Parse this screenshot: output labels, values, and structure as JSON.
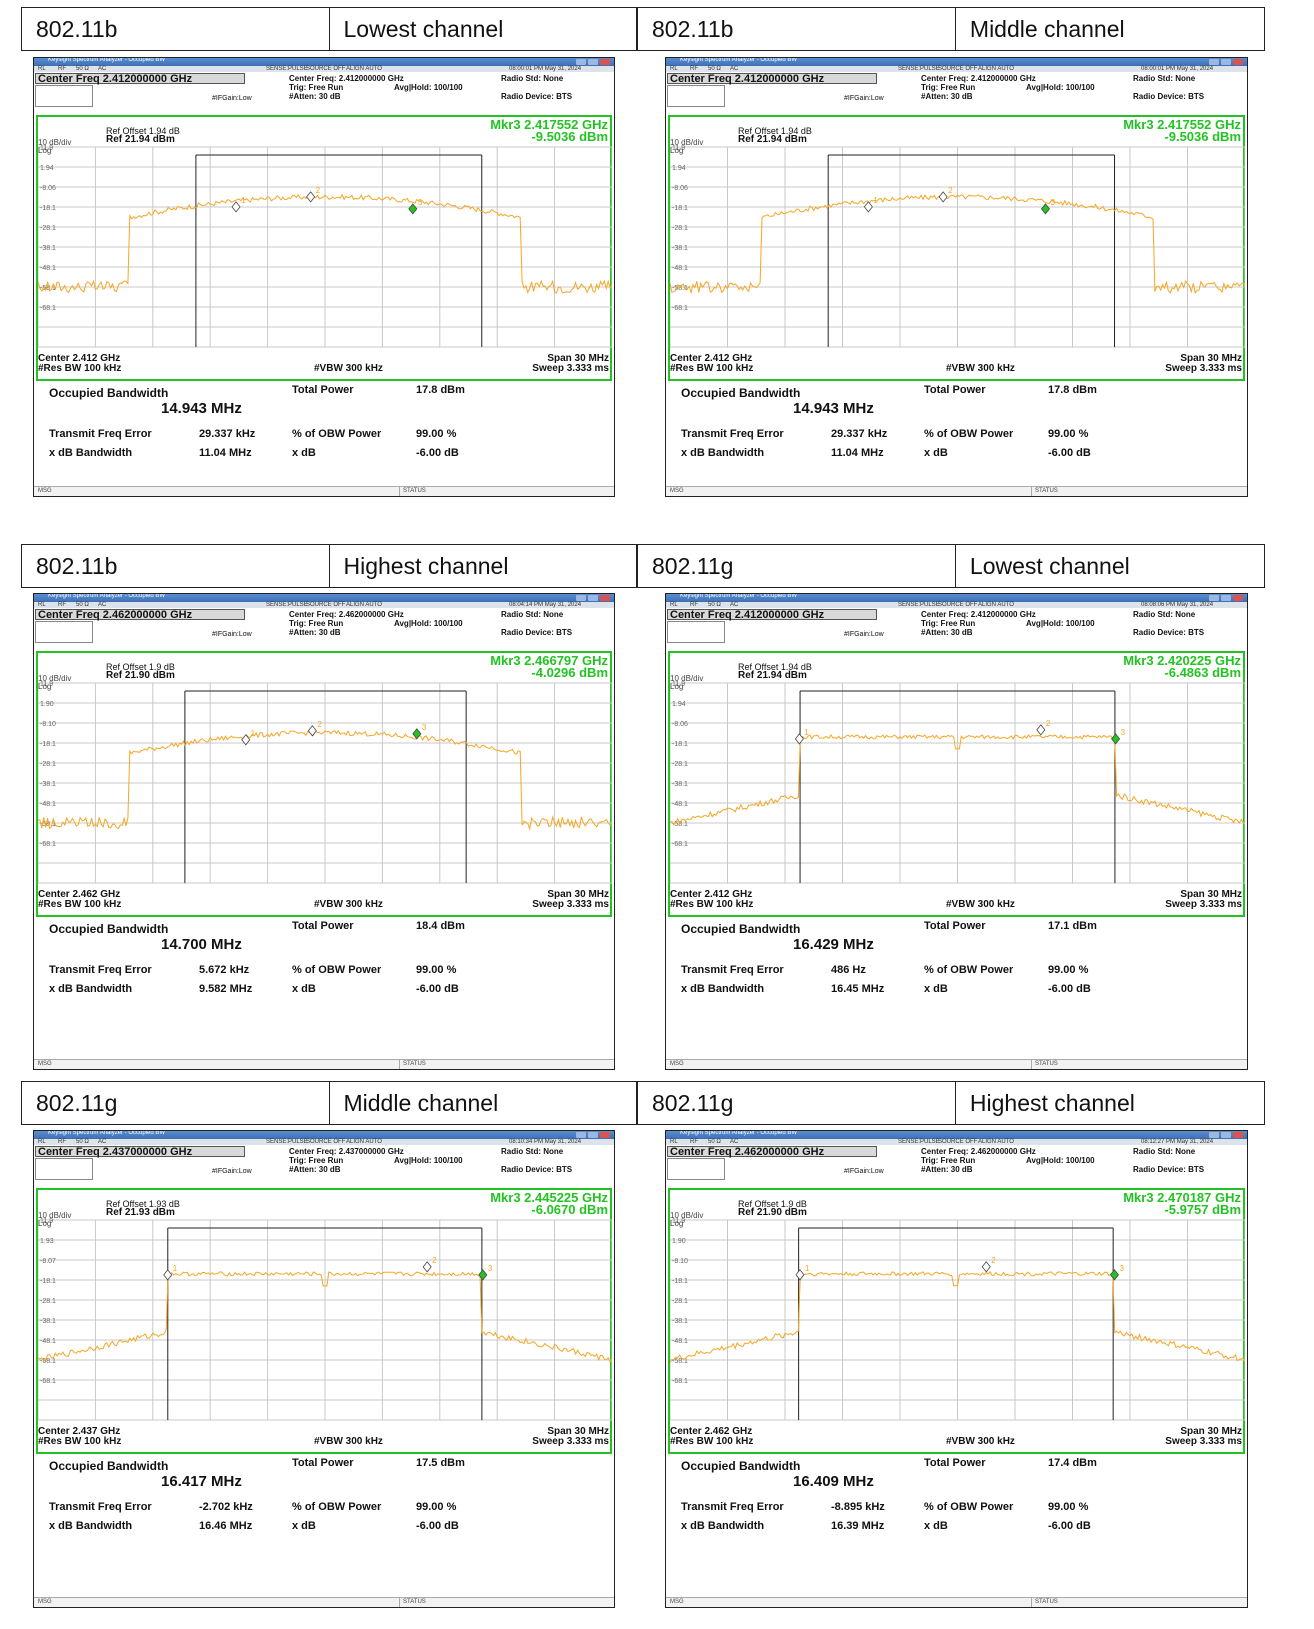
{
  "colors": {
    "trace": "#f5a623",
    "frame": "#22c322",
    "marker_active": "#22c322",
    "marker_inactive": "#ffffff",
    "window_title": "#3e6fb6"
  },
  "common": {
    "app_title": "Keysight Spectrum Analyzer - Occupied BW",
    "rl": "RL",
    "rf": "RF",
    "impedance": "50 Ω",
    "ac": "AC",
    "sense": "SENSE:PULSE",
    "source": "SOURCE OFF",
    "align": "ALIGN AUTO",
    "trig": "Trig: Free Run",
    "avg_hold": "Avg|Hold: 100/100",
    "radio_std": "Radio Std: None",
    "ifgain": "#IFGain:Low",
    "atten": "#Atten: 30 dB",
    "radio_device": "Radio Device: BTS",
    "scale": "10 dB/div",
    "log": "Log",
    "res_bw": "#Res BW  100 kHz",
    "vbw": "#VBW  300 kHz",
    "span": "Span 30 MHz",
    "sweep": "Sweep  3.333 ms",
    "obw_label": "Occupied Bandwidth",
    "total_power_label": "Total Power",
    "tfe_label": "Transmit Freq Error",
    "pct_label": "% of OBW Power",
    "pct_value": "99.00 %",
    "xdb_bw_label": "x dB Bandwidth",
    "xdb_label": "x dB",
    "xdb_value": "-6.00 dB",
    "msg": "MSG",
    "status": "STATUS"
  },
  "panels": [
    {
      "standard": "802.11b",
      "channel": "Lowest channel",
      "timestamp": "08:00:01 PM May 31, 2024",
      "cf_box": "Center Freq 2.412000000 GHz",
      "cf_small": "Center Freq: 2.412000000 GHz",
      "ref_offset": "Ref Offset 1.94 dB",
      "ref": "Ref 21.94 dBm",
      "marker_freq": "Mkr3  2.417552 GHz",
      "marker_level": "-9.5036 dBm",
      "yticks": [
        "11.9",
        "1.94",
        "-8.06",
        "-18.1",
        "-28.1",
        "-38.1",
        "-48.1",
        "-58.1",
        "-68.1"
      ],
      "center": "Center  2.412 GHz",
      "obw": "14.943 MHz",
      "total_power": "17.8 dBm",
      "tfe": "29.337 kHz",
      "xdb_bw": "11.04 MHz",
      "shape": "dsss",
      "bw_frac": 0.49,
      "occ_frac": [
        0.2751,
        0.7731
      ],
      "mkrs": [
        0.345,
        0.475,
        0.653
      ],
      "mk_lvl": [
        -8.5,
        -3.5,
        -9.5
      ]
    },
    {
      "standard": "802.11b",
      "channel": "Middle channel",
      "timestamp": "08:00:01 PM May 31, 2024",
      "cf_box": "Center Freq 2.412000000 GHz",
      "cf_small": "Center Freq: 2.412000000 GHz",
      "ref_offset": "Ref Offset 1.94 dB",
      "ref": "Ref 21.94 dBm",
      "marker_freq": "Mkr3  2.417552 GHz",
      "marker_level": "-9.5036 dBm",
      "yticks": [
        "11.9",
        "1.94",
        "-8.06",
        "-18.1",
        "-28.1",
        "-38.1",
        "-48.1",
        "-58.1",
        "-68.1"
      ],
      "center": "Center  2.412 GHz",
      "obw": "14.943 MHz",
      "total_power": "17.8 dBm",
      "tfe": "29.337 kHz",
      "xdb_bw": "11.04 MHz",
      "shape": "dsss",
      "bw_frac": 0.49,
      "occ_frac": [
        0.2751,
        0.7731
      ],
      "mkrs": [
        0.345,
        0.475,
        0.653
      ],
      "mk_lvl": [
        -8.5,
        -3.5,
        -9.5
      ]
    },
    {
      "standard": "802.11b",
      "channel": "Highest channel",
      "timestamp": "08:04:14 PM May 31, 2024",
      "cf_box": "Center Freq 2.462000000 GHz",
      "cf_small": "Center Freq: 2.462000000 GHz",
      "ref_offset": "Ref Offset 1.9 dB",
      "ref": "Ref 21.90 dBm",
      "marker_freq": "Mkr3  2.466797 GHz",
      "marker_level": "-4.0296 dBm",
      "yticks": [
        "11.9",
        "1.90",
        "-8.10",
        "-18.1",
        "-28.1",
        "-38.1",
        "-48.1",
        "-58.1",
        "-68.1"
      ],
      "center": "Center  2.462 GHz",
      "obw": "14.700 MHz",
      "total_power": "18.4 dBm",
      "tfe": "5.672 kHz",
      "xdb_bw": "9.582 MHz",
      "shape": "dsss",
      "bw_frac": 0.49,
      "occ_frac": [
        0.2559,
        0.7459
      ],
      "mkrs": [
        0.362,
        0.478,
        0.66
      ],
      "mk_lvl": [
        -7.0,
        -2.5,
        -4.0
      ]
    },
    {
      "standard": "802.11g",
      "channel": "Lowest channel",
      "timestamp": "08:08:06 PM May 31, 2024",
      "cf_box": "Center Freq 2.412000000 GHz",
      "cf_small": "Center Freq: 2.412000000 GHz",
      "ref_offset": "Ref Offset 1.94 dB",
      "ref": "Ref 21.94 dBm",
      "marker_freq": "Mkr3  2.420225 GHz",
      "marker_level": "-6.4863 dBm",
      "yticks": [
        "11.9",
        "1.94",
        "-8.06",
        "-18.1",
        "-28.1",
        "-38.1",
        "-48.1",
        "-58.1",
        "-68.1"
      ],
      "center": "Center  2.412 GHz",
      "obw": "16.429 MHz",
      "total_power": "17.1 dBm",
      "tfe": "486 Hz",
      "xdb_bw": "16.45 MHz",
      "shape": "ofdm",
      "occ_frac": [
        0.2262,
        0.7738
      ],
      "mkrs": [
        0.225,
        0.645,
        0.775
      ],
      "mk_lvl": [
        -6.5,
        -2.0,
        -6.5
      ]
    },
    {
      "standard": "802.11g",
      "channel": "Middle channel",
      "timestamp": "08:10:34 PM May 31, 2024",
      "cf_box": "Center Freq 2.437000000 GHz",
      "cf_small": "Center Freq: 2.437000000 GHz",
      "ref_offset": "Ref Offset 1.93 dB",
      "ref": "Ref 21.93 dBm",
      "marker_freq": "Mkr3  2.445225 GHz",
      "marker_level": "-6.0670 dBm",
      "yticks": [
        "11.9",
        "1.93",
        "-8.07",
        "-18.1",
        "-28.1",
        "-38.1",
        "-48.1",
        "-58.1",
        "-68.1"
      ],
      "center": "Center  2.437 GHz",
      "obw": "16.417 MHz",
      "total_power": "17.5 dBm",
      "tfe": "-2.702 kHz",
      "xdb_bw": "16.46 MHz",
      "shape": "ofdm",
      "occ_frac": [
        0.2261,
        0.7733
      ],
      "mkrs": [
        0.226,
        0.678,
        0.775
      ],
      "mk_lvl": [
        -6.0,
        -2.0,
        -6.0
      ]
    },
    {
      "standard": "802.11g",
      "channel": "Highest channel",
      "timestamp": "08:12:27 PM May 31, 2024",
      "cf_box": "Center Freq 2.462000000 GHz",
      "cf_small": "Center Freq: 2.462000000 GHz",
      "ref_offset": "Ref Offset 1.9 dB",
      "ref": "Ref 21.90 dBm",
      "marker_freq": "Mkr3  2.470187 GHz",
      "marker_level": "-5.9757 dBm",
      "yticks": [
        "11.9",
        "1.90",
        "-8.10",
        "-18.1",
        "-28.1",
        "-38.1",
        "-48.1",
        "-58.1",
        "-68.1"
      ],
      "center": "Center  2.462 GHz",
      "obw": "16.409 MHz",
      "total_power": "17.4 dBm",
      "tfe": "-8.895 kHz",
      "xdb_bw": "16.39 MHz",
      "shape": "ofdm",
      "occ_frac": [
        0.2237,
        0.7707
      ],
      "mkrs": [
        0.226,
        0.55,
        0.773
      ],
      "mk_lvl": [
        -6.0,
        -2.0,
        -6.0
      ]
    }
  ]
}
